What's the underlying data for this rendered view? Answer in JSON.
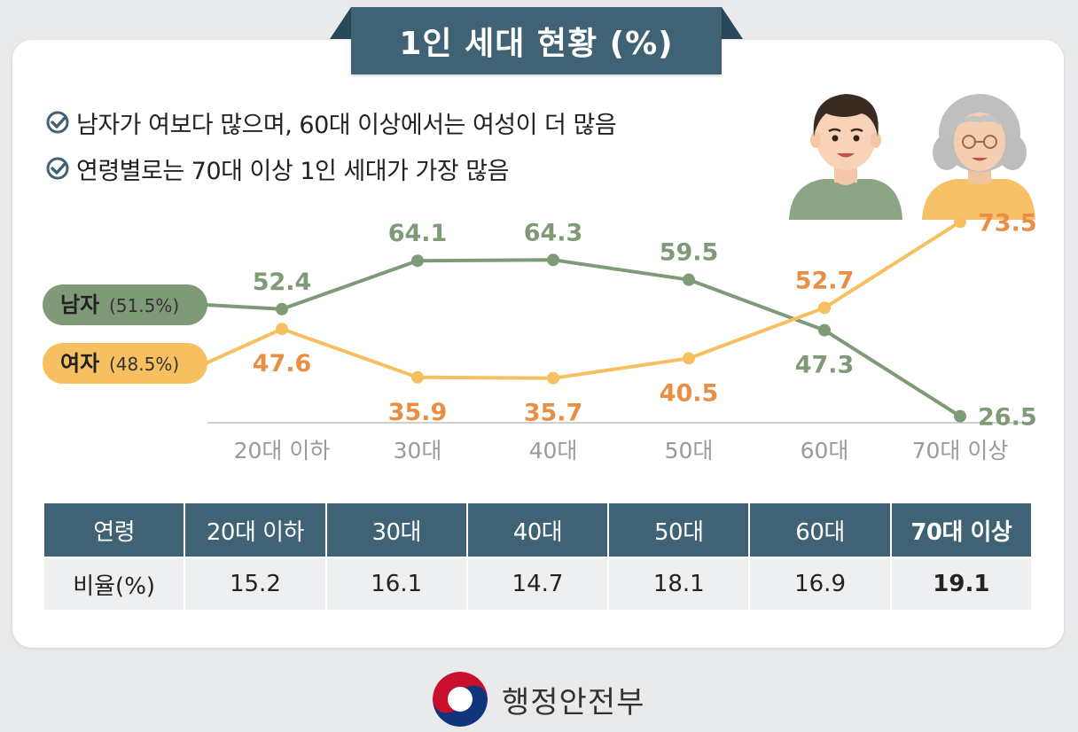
{
  "title": "1인 세대 현황 (%)",
  "bullets": [
    "남자가 여보다 많으며, 60대 이상에서는 여성이 더 많음",
    "연령별로는 70대 이상 1인 세대가 가장 많음"
  ],
  "colors": {
    "male": "#7e9a76",
    "female": "#f6c061",
    "female_text": "#e98f45",
    "header": "#3f6274",
    "axis_text": "#9a9a9a"
  },
  "chart_data": {
    "type": "line",
    "categories": [
      "20대 이하",
      "30대",
      "40대",
      "50대",
      "60대",
      "70대 이상"
    ],
    "series": [
      {
        "name": "남자",
        "share": "(51.5%)",
        "values": [
          52.4,
          64.1,
          64.3,
          59.5,
          47.3,
          26.5
        ]
      },
      {
        "name": "여자",
        "share": "(48.5%)",
        "values": [
          47.6,
          35.9,
          35.7,
          40.5,
          52.7,
          73.5
        ]
      }
    ],
    "ylim": [
      20,
      80
    ],
    "grid": false,
    "legend": "left"
  },
  "table": {
    "header_label": "연령",
    "row_label": "비율(%)",
    "columns": [
      "20대 이하",
      "30대",
      "40대",
      "50대",
      "60대",
      "70대 이상"
    ],
    "values": [
      "15.2",
      "16.1",
      "14.7",
      "18.1",
      "16.9",
      "19.1"
    ]
  },
  "footer": {
    "org_name": "행정안전부",
    "logo_icon": "taegeuk-emblem-icon"
  },
  "portraits": [
    "young-man-icon",
    "elderly-woman-icon"
  ]
}
